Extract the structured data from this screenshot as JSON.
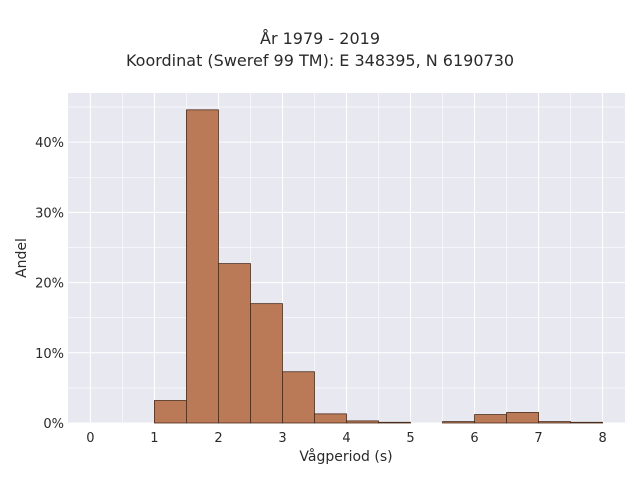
{
  "chart_data": {
    "type": "bar",
    "title": "År 1979 - 2019",
    "subtitle": "Koordinat (Sweref 99 TM): E 348395, N 6190730",
    "xlabel": "Vågperiod (s)",
    "ylabel": "Andel",
    "xlim": [
      -0.35,
      8.35
    ],
    "ylim": [
      0,
      0.47
    ],
    "x_ticks": [
      {
        "value": 0,
        "label": "0"
      },
      {
        "value": 1,
        "label": "1"
      },
      {
        "value": 2,
        "label": "2"
      },
      {
        "value": 3,
        "label": "3"
      },
      {
        "value": 4,
        "label": "4"
      },
      {
        "value": 5,
        "label": "5"
      },
      {
        "value": 6,
        "label": "6"
      },
      {
        "value": 7,
        "label": "7"
      },
      {
        "value": 8,
        "label": "8"
      }
    ],
    "y_ticks": [
      {
        "value": 0,
        "label": "0%"
      },
      {
        "value": 0.1,
        "label": "10%"
      },
      {
        "value": 0.2,
        "label": "20%"
      },
      {
        "value": 0.3,
        "label": "30%"
      },
      {
        "value": 0.4,
        "label": "40%"
      }
    ],
    "grid": true,
    "bin_width": 0.5,
    "bin_starts": [
      1.0,
      1.5,
      2.0,
      2.5,
      3.0,
      3.5,
      4.0,
      4.5,
      5.0,
      5.5,
      6.0,
      6.5,
      7.0,
      7.5
    ],
    "values": [
      0.032,
      0.446,
      0.227,
      0.17,
      0.073,
      0.013,
      0.003,
      0.001,
      0,
      0.002,
      0.012,
      0.015,
      0.002,
      0.001
    ],
    "colors": {
      "bar_fill": "#bb7a57",
      "bar_edge": "#4a2a18",
      "plot_background": "#e8e8f0",
      "grid": "#ffffff"
    }
  }
}
